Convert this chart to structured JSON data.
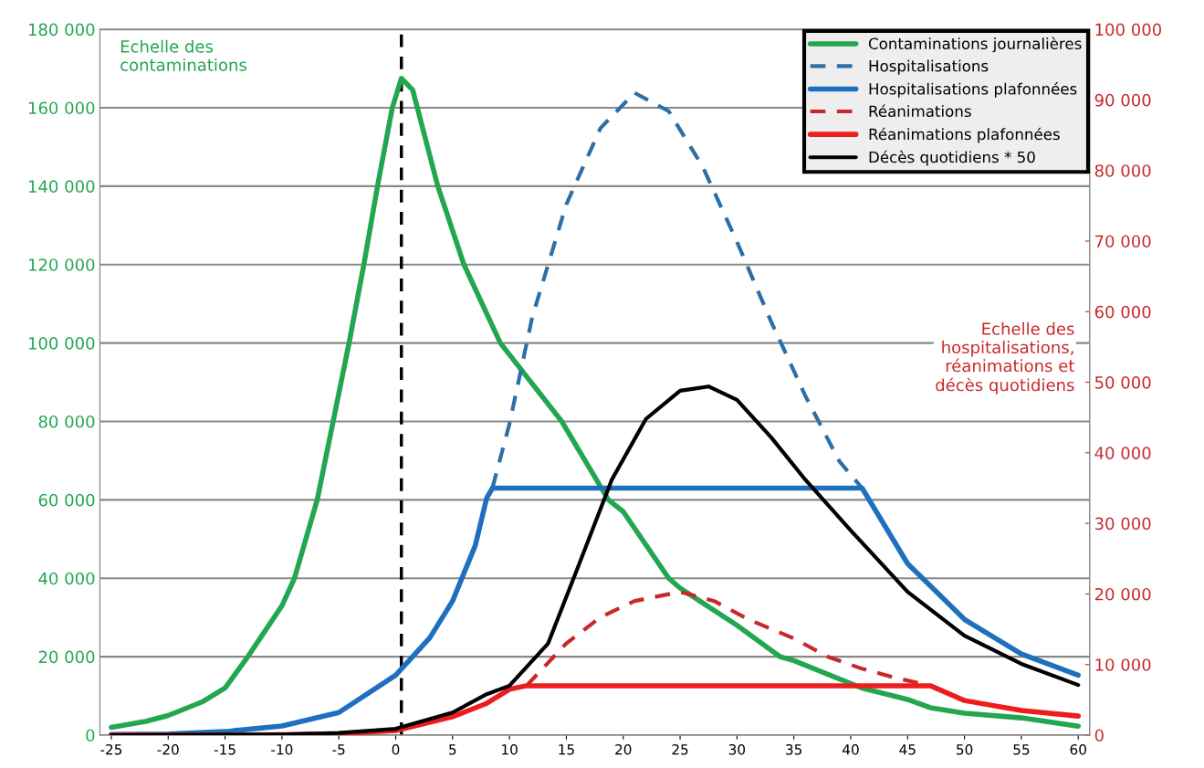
{
  "chart_data": {
    "type": "line",
    "xlim": [
      -26,
      61
    ],
    "xticks": [
      -25,
      -20,
      -15,
      -10,
      -5,
      0,
      5,
      10,
      15,
      20,
      25,
      30,
      35,
      40,
      45,
      50,
      55,
      60
    ],
    "ylim": [
      0,
      180000
    ],
    "yticks": [
      {
        "value": 0,
        "label": "0"
      },
      {
        "value": 20000,
        "label": "20 000"
      },
      {
        "value": 40000,
        "label": "40 000"
      },
      {
        "value": 60000,
        "label": "60 000"
      },
      {
        "value": 80000,
        "label": "80 000"
      },
      {
        "value": 100000,
        "label": "100 000"
      },
      {
        "value": 120000,
        "label": "120 000"
      },
      {
        "value": 140000,
        "label": "140 000"
      },
      {
        "value": 160000,
        "label": "160 000"
      },
      {
        "value": 180000,
        "label": "180 000"
      }
    ],
    "y2lim": [
      0,
      100000
    ],
    "y2ticks": [
      {
        "value": 0,
        "label": "0"
      },
      {
        "value": 10000,
        "label": "10 000"
      },
      {
        "value": 20000,
        "label": "20 000"
      },
      {
        "value": 30000,
        "label": "30 000"
      },
      {
        "value": 40000,
        "label": "40 000"
      },
      {
        "value": 50000,
        "label": "50 000"
      },
      {
        "value": 60000,
        "label": "60 000"
      },
      {
        "value": 70000,
        "label": "70 000"
      },
      {
        "value": 80000,
        "label": "80 000"
      },
      {
        "value": 90000,
        "label": "90 000"
      },
      {
        "value": 100000,
        "label": "100 000"
      }
    ],
    "grid": "y",
    "legend": "top right",
    "marker": "none",
    "ref_lines": [
      {
        "axis": "x",
        "value": 0.5,
        "color": "#000000",
        "line_style": "dashed"
      }
    ],
    "annotations": [
      "Echelle des\ncontaminations",
      "Echelle des\nhospitalisations,\nréanimations et\ndécès quotidiens"
    ],
    "series": [
      {
        "name": "Contaminations journalières",
        "color": "#22a650",
        "line_style": "solid",
        "x": [
          -25,
          -22,
          -20,
          -17,
          -15,
          -13,
          -10,
          -8.9,
          -6.9,
          -5.5,
          -4.1,
          -2.8,
          -1.6,
          -0.3,
          0.5,
          1.5,
          3.7,
          6,
          9.2,
          14.6,
          18.7,
          20,
          24,
          25,
          30,
          33.8,
          35,
          41,
          45,
          47,
          50,
          55,
          60
        ],
        "values": [
          2000,
          3500,
          5000,
          8500,
          12000,
          20000,
          33000,
          40000,
          60000,
          80000,
          100000,
          120000,
          140000,
          160000,
          167500,
          164500,
          140000,
          120000,
          100000,
          80000,
          60000,
          57000,
          40000,
          37500,
          28000,
          20000,
          19000,
          12000,
          9100,
          7000,
          5600,
          4400,
          2300
        ]
      },
      {
        "name": "Hospitalisations",
        "color": "#2b6fa8",
        "line_style": "dashed",
        "axis": "y2",
        "x": [
          8.5,
          10,
          12,
          15,
          18,
          21,
          24,
          27,
          30,
          33,
          36,
          39,
          41
        ],
        "values": [
          35000,
          44100,
          59200,
          75200,
          86000,
          91000,
          88400,
          80500,
          69900,
          58600,
          48100,
          38800,
          35000
        ]
      },
      {
        "name": "Hospitalisations plafonnées",
        "color": "#1f6fbf",
        "line_style": "solid",
        "axis": "y2",
        "x": [
          -25,
          -20,
          -15,
          -10,
          -5,
          0,
          3,
          5,
          7,
          8,
          8.5,
          41,
          45,
          50,
          55,
          60
        ],
        "values": [
          100,
          150,
          500,
          1300,
          3200,
          8500,
          13800,
          19000,
          26900,
          33600,
          35000,
          35000,
          24300,
          16400,
          11500,
          8500
        ]
      },
      {
        "name": "Réanimations",
        "color": "#c8282a",
        "line_style": "dashed",
        "axis": "y2",
        "x": [
          11.5,
          15,
          18,
          21,
          25,
          28,
          31,
          35,
          38,
          41,
          44,
          47
        ],
        "values": [
          7000,
          13000,
          16700,
          19000,
          20300,
          19000,
          16400,
          13700,
          11100,
          9400,
          8100,
          7000
        ]
      },
      {
        "name": "Réanimations plafonnées",
        "color": "#ee1c1c",
        "line_style": "solid",
        "axis": "y2",
        "x": [
          -25,
          -10,
          -5,
          0,
          5,
          8,
          10,
          11.5,
          47,
          50,
          55,
          60
        ],
        "values": [
          0,
          50,
          200,
          650,
          2600,
          4500,
          6500,
          7000,
          7000,
          4900,
          3500,
          2700
        ]
      },
      {
        "name": "Décès quotidiens * 50",
        "color": "#000000",
        "line_style": "solid",
        "axis": "y2",
        "x": [
          -25,
          -10,
          -5,
          0,
          5,
          8,
          10,
          13.4,
          16,
          19,
          22,
          25,
          27.5,
          30,
          33,
          36,
          40,
          45,
          50,
          55,
          60
        ],
        "values": [
          0,
          100,
          300,
          900,
          3200,
          5800,
          7000,
          13000,
          23700,
          36200,
          44800,
          48800,
          49400,
          47500,
          42200,
          36200,
          29000,
          20300,
          14100,
          10100,
          7100
        ]
      }
    ]
  }
}
